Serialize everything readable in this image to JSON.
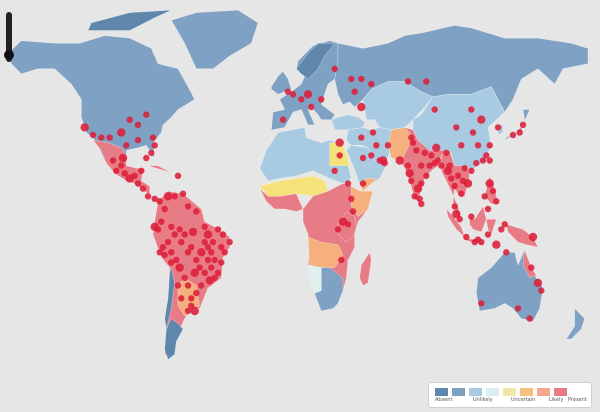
{
  "colors": {
    "ocean": "#e6e6e6",
    "absent_dark": "#5f86ab",
    "absent": "#7fa2c4",
    "unlikely": "#a9cbe2",
    "uncertain": "#dff0ee",
    "likely_yellow": "#f6e27b",
    "likely_orange": "#f6b07e",
    "present": "#e87c86",
    "dot": "#dc1f3a"
  },
  "legend": {
    "items": [
      {
        "label": "Absent",
        "color": "#5f86ab"
      },
      {
        "label": "",
        "color": "#7fa2c4"
      },
      {
        "label": "Unlikely",
        "color": "#a9cbe2"
      },
      {
        "label": "",
        "color": "#d6edf2"
      },
      {
        "label": "Uncertain",
        "color": "#f2e6a6"
      },
      {
        "label": "",
        "color": "#f6c07e"
      },
      {
        "label": "Likely",
        "color": "#f4a98f"
      },
      {
        "label": "Present",
        "color": "#e87c86"
      }
    ]
  },
  "zoom_control": {
    "icon": "zoom-slider-icon"
  },
  "occurrence_points": {
    "americas": [
      [
        -100,
        35
      ],
      [
        -90,
        32
      ],
      [
        -80,
        30
      ],
      [
        -85,
        25
      ],
      [
        -100,
        22
      ],
      [
        -105,
        24
      ],
      [
        -98,
        19
      ],
      [
        -95,
        17
      ],
      [
        -90,
        15
      ],
      [
        -87,
        13
      ],
      [
        -84,
        10
      ],
      [
        -80,
        9
      ],
      [
        -77,
        8
      ],
      [
        -74,
        5
      ],
      [
        -72,
        10
      ],
      [
        -68,
        10
      ],
      [
        -66,
        18
      ],
      [
        -63,
        11
      ],
      [
        -60,
        6
      ],
      [
        -55,
        4
      ],
      [
        -50,
        -2
      ],
      [
        -48,
        -5
      ],
      [
        -45,
        -8
      ],
      [
        -40,
        -10
      ],
      [
        -38,
        -12
      ],
      [
        -35,
        -8
      ],
      [
        -42,
        -20
      ],
      [
        -44,
        -22
      ],
      [
        -47,
        -23
      ],
      [
        -50,
        -20
      ],
      [
        -52,
        -25
      ],
      [
        -55,
        -28
      ],
      [
        -58,
        -30
      ],
      [
        -60,
        -25
      ],
      [
        -62,
        -22
      ],
      [
        -65,
        -18
      ],
      [
        -67,
        -15
      ],
      [
        -70,
        -12
      ],
      [
        -72,
        -8
      ],
      [
        -75,
        -10
      ],
      [
        -78,
        -3
      ],
      [
        -76,
        0
      ],
      [
        -80,
        -2
      ],
      [
        -55,
        -15
      ],
      [
        -58,
        -10
      ],
      [
        -62,
        -5
      ],
      [
        -65,
        -3
      ],
      [
        -68,
        -5
      ],
      [
        -70,
        -2
      ],
      [
        -52,
        -12
      ],
      [
        -48,
        -15
      ],
      [
        -46,
        -18
      ],
      [
        -44,
        -15
      ],
      [
        -40,
        -16
      ],
      [
        -39,
        -5
      ],
      [
        -42,
        -3
      ],
      [
        -56,
        -20
      ],
      [
        -53,
        -18
      ],
      [
        -60,
        -12
      ],
      [
        -48,
        -10
      ],
      [
        -64,
        -8
      ],
      [
        -50,
        -8
      ],
      [
        -46,
        -12
      ],
      [
        -57,
        -4
      ],
      [
        -74,
        -13
      ],
      [
        -70,
        -16
      ],
      [
        -77,
        -12
      ],
      [
        -66,
        -25
      ],
      [
        -58,
        -33
      ],
      [
        -60,
        -35
      ],
      [
        -56,
        -35
      ],
      [
        -64,
        -30
      ],
      [
        -82,
        27
      ],
      [
        -81,
        33
      ],
      [
        -90,
        38
      ],
      [
        -95,
        40
      ],
      [
        -85,
        42
      ],
      [
        -122,
        37
      ],
      [
        -117,
        34
      ],
      [
        -107,
        33
      ],
      [
        -97,
        30
      ],
      [
        -112,
        33
      ],
      [
        -88,
        20
      ],
      [
        -92,
        18
      ],
      [
        -99,
        25
      ],
      [
        -103,
        20
      ]
    ],
    "africa_me": [
      [
        31,
        31
      ],
      [
        31,
        26
      ],
      [
        28,
        20
      ],
      [
        36,
        15
      ],
      [
        38,
        9
      ],
      [
        39,
        4
      ],
      [
        36,
        -1
      ],
      [
        33,
        0
      ],
      [
        30,
        -3
      ],
      [
        32,
        -15
      ],
      [
        45,
        15
      ],
      [
        45,
        25
      ],
      [
        50,
        26
      ],
      [
        55,
        24
      ],
      [
        57,
        24
      ],
      [
        58,
        23
      ]
    ],
    "asia": [
      [
        73,
        19
      ],
      [
        77,
        28
      ],
      [
        80,
        22
      ],
      [
        85,
        22
      ],
      [
        88,
        23
      ],
      [
        72,
        22
      ],
      [
        74,
        16
      ],
      [
        78,
        13
      ],
      [
        80,
        15
      ],
      [
        76,
        10
      ],
      [
        80,
        7
      ],
      [
        86,
        26
      ],
      [
        90,
        24
      ],
      [
        92,
        22
      ],
      [
        96,
        20
      ],
      [
        98,
        17
      ],
      [
        100,
        14
      ],
      [
        102,
        18
      ],
      [
        105,
        16
      ],
      [
        104,
        11
      ],
      [
        106,
        21
      ],
      [
        108,
        15
      ],
      [
        110,
        20
      ],
      [
        113,
        23
      ],
      [
        117,
        24
      ],
      [
        119,
        26
      ],
      [
        121,
        30
      ],
      [
        121,
        24
      ],
      [
        121,
        15
      ],
      [
        123,
        12
      ],
      [
        125,
        8
      ],
      [
        118,
        10
      ],
      [
        120,
        5
      ],
      [
        110,
        2
      ],
      [
        103,
        1
      ],
      [
        101,
        3
      ],
      [
        100,
        6
      ],
      [
        114,
        -7
      ],
      [
        107,
        -6
      ],
      [
        112,
        -8
      ],
      [
        116,
        -8
      ],
      [
        120,
        -5
      ],
      [
        125,
        -9
      ],
      [
        128,
        -3
      ],
      [
        130,
        -1
      ],
      [
        139,
        35
      ],
      [
        141,
        38
      ],
      [
        135,
        34
      ],
      [
        126,
        37
      ],
      [
        116,
        40
      ],
      [
        114,
        30
      ],
      [
        104,
        30
      ],
      [
        111,
        35
      ],
      [
        88,
        44
      ],
      [
        101,
        37
      ],
      [
        110,
        44
      ],
      [
        67,
        24
      ],
      [
        60,
        30
      ],
      [
        51,
        35
      ],
      [
        44,
        33
      ],
      [
        53,
        30
      ],
      [
        74,
        33
      ],
      [
        82,
        27
      ],
      [
        89,
        29
      ],
      [
        75,
        31
      ],
      [
        79,
        9
      ],
      [
        83,
        18
      ],
      [
        95,
        27
      ],
      [
        97,
        22
      ],
      [
        40,
        51
      ],
      [
        44,
        45
      ],
      [
        38,
        56
      ],
      [
        28,
        60
      ],
      [
        44,
        56
      ],
      [
        50,
        54
      ],
      [
        72,
        55
      ],
      [
        83,
        55
      ],
      [
        12,
        50
      ],
      [
        8,
        48
      ],
      [
        3,
        50
      ],
      [
        0,
        51
      ],
      [
        14,
        45
      ],
      [
        20,
        48
      ],
      [
        -3,
        40
      ]
    ],
    "oceania": [
      [
        150,
        -24
      ],
      [
        152,
        -27
      ],
      [
        145,
        -38
      ],
      [
        138,
        -34
      ],
      [
        116,
        -32
      ],
      [
        131,
        -12
      ],
      [
        146,
        -18
      ],
      [
        147,
        -6
      ]
    ]
  }
}
